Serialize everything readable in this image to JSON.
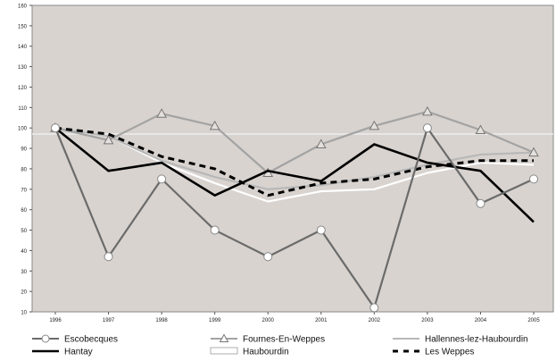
{
  "chart_data": {
    "type": "line",
    "x": [
      "1996",
      "1997",
      "1998",
      "1999",
      "2000",
      "2001",
      "2002",
      "2003",
      "2004",
      "2005"
    ],
    "ylim": [
      10,
      160
    ],
    "yticks": [
      10,
      20,
      30,
      40,
      50,
      60,
      70,
      80,
      90,
      100,
      110,
      120,
      130,
      140,
      150,
      160
    ],
    "reference_line": 97,
    "grid": false,
    "legend_position": "bottom",
    "plot_background": "#d8d3cf",
    "series": [
      {
        "name": "Escobecques",
        "values": [
          100,
          37,
          75,
          50,
          37,
          50,
          12,
          100,
          63,
          75
        ],
        "color": "#6b6b6b",
        "marker": "circle",
        "style": "solid"
      },
      {
        "name": "Fournes-En-Weppes",
        "values": [
          100,
          94,
          107,
          101,
          78,
          92,
          101,
          108,
          99,
          88
        ],
        "color": "#a3a3a3",
        "marker": "triangle",
        "style": "solid"
      },
      {
        "name": "Hallennes-lez-Haubourdin",
        "values": [
          100,
          96,
          84,
          76,
          70,
          72,
          76,
          82,
          87,
          88
        ],
        "color": "#b8b8b8",
        "marker": "none",
        "style": "solid"
      },
      {
        "name": "Hantay",
        "values": [
          100,
          79,
          83,
          67,
          79,
          74,
          92,
          83,
          79,
          54
        ],
        "color": "#000000",
        "marker": "none",
        "style": "solid"
      },
      {
        "name": "Haubourdin",
        "values": [
          100,
          96,
          83,
          73,
          64,
          69,
          70,
          78,
          83,
          82
        ],
        "color": "#ffffff",
        "marker": "none",
        "style": "solid"
      },
      {
        "name": "Les Weppes",
        "values": [
          100,
          97,
          86,
          80,
          67,
          73,
          75,
          81,
          84,
          84
        ],
        "color": "#000000",
        "marker": "none",
        "style": "dashed"
      }
    ]
  }
}
